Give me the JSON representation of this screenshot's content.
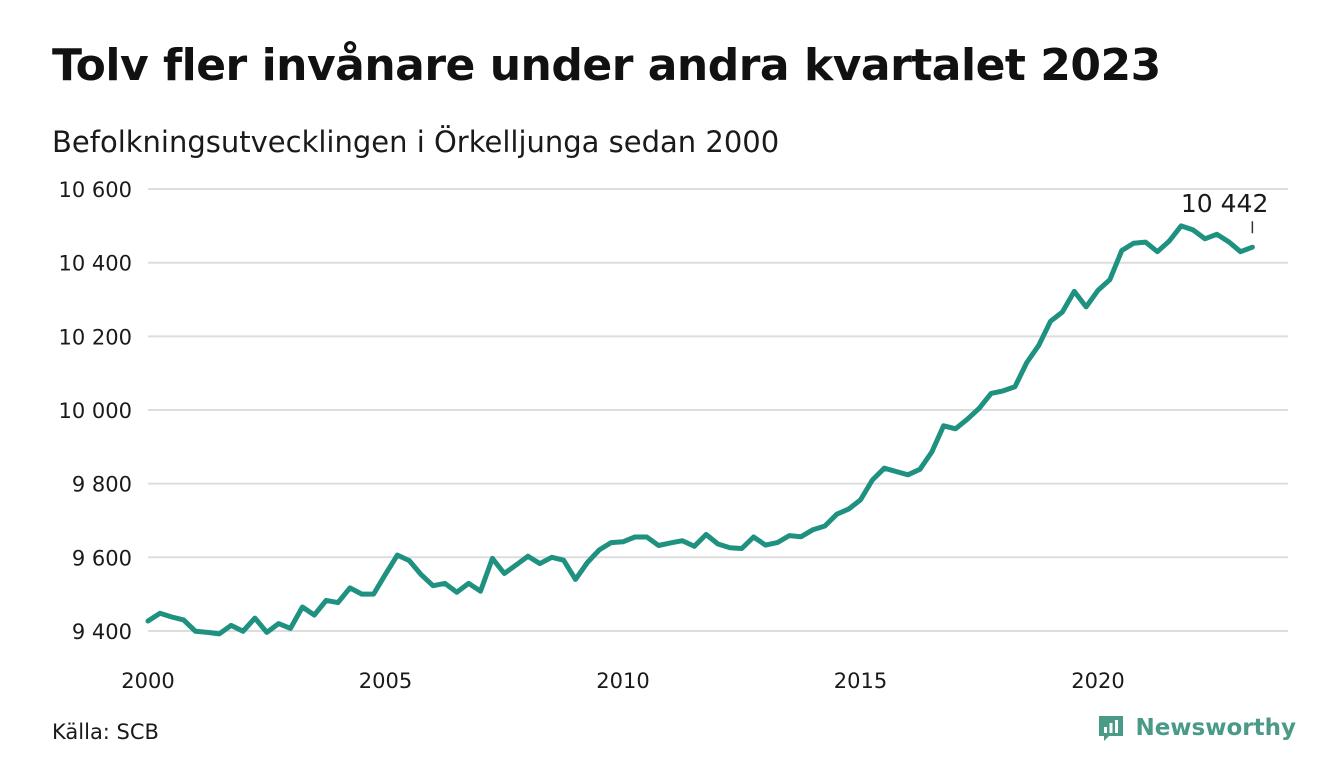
{
  "title": "Tolv fler invånare under andra kvartalet 2023",
  "subtitle": "Befolkningsutvecklingen i Örkelljunga sedan 2000",
  "source": "Källa: SCB",
  "brand": {
    "name": "Newsworthy",
    "icon": "newsworthy-logo-icon",
    "color": "#4a9a88"
  },
  "colors": {
    "line": "#1f9181",
    "grid": "#dddddd",
    "text": "#1a1a1a"
  },
  "chart_data": {
    "type": "line",
    "title": "Tolv fler invånare under andra kvartalet 2023",
    "subtitle": "Befolkningsutvecklingen i Örkelljunga sedan 2000",
    "xlabel": "",
    "ylabel": "",
    "xlim": [
      2000,
      2024
    ],
    "ylim": [
      9370,
      10630
    ],
    "yticks": [
      9400,
      9600,
      9800,
      10000,
      10200,
      10400,
      10600
    ],
    "ytick_labels": [
      "9 400",
      "9 600",
      "9 800",
      "10 000",
      "10 200",
      "10 400",
      "10 600"
    ],
    "xticks": [
      2000,
      2005,
      2010,
      2015,
      2020
    ],
    "xtick_labels": [
      "2000",
      "2005",
      "2010",
      "2015",
      "2020"
    ],
    "grid": "horizontal",
    "legend": "none",
    "annotation": {
      "text": "10 442",
      "x": 2023.25,
      "y": 10442
    },
    "series": [
      {
        "x": [
          2000.0,
          2000.25,
          2000.5,
          2000.75,
          2001.0,
          2001.25,
          2001.5,
          2001.75,
          2002.0,
          2002.25,
          2002.5,
          2002.75,
          2003.0,
          2003.25,
          2003.5,
          2003.75,
          2004.0,
          2004.25,
          2004.5,
          2004.75,
          2005.0,
          2005.25,
          2005.5,
          2005.75,
          2006.0,
          2006.25,
          2006.5,
          2006.75,
          2007.0,
          2007.25,
          2007.5,
          2007.75,
          2008.0,
          2008.25,
          2008.5,
          2008.75,
          2009.0,
          2009.25,
          2009.5,
          2009.75,
          2010.0,
          2010.25,
          2010.5,
          2010.75,
          2011.0,
          2011.25,
          2011.5,
          2011.75,
          2012.0,
          2012.25,
          2012.5,
          2012.75,
          2013.0,
          2013.25,
          2013.5,
          2013.75,
          2014.0,
          2014.25,
          2014.5,
          2014.75,
          2015.0,
          2015.25,
          2015.5,
          2015.75,
          2016.0,
          2016.25,
          2016.5,
          2016.75,
          2017.0,
          2017.25,
          2017.5,
          2017.75,
          2018.0,
          2018.25,
          2018.5,
          2018.75,
          2019.0,
          2019.25,
          2019.5,
          2019.75,
          2020.0,
          2020.25,
          2020.5,
          2020.75,
          2021.0,
          2021.25,
          2021.5,
          2021.75,
          2022.0,
          2022.25,
          2022.5,
          2022.75,
          2023.0,
          2023.25
        ],
        "values": [
          9427,
          9448,
          9438,
          9430,
          9399,
          9396,
          9392,
          9415,
          9399,
          9435,
          9396,
          9420,
          9407,
          9465,
          9443,
          9483,
          9477,
          9517,
          9500,
          9500,
          9554,
          9606,
          9591,
          9553,
          9523,
          9529,
          9505,
          9529,
          9508,
          9597,
          9556,
          9579,
          9603,
          9583,
          9600,
          9592,
          9540,
          9586,
          9620,
          9640,
          9642,
          9655,
          9655,
          9632,
          9639,
          9645,
          9630,
          9662,
          9636,
          9626,
          9624,
          9655,
          9633,
          9640,
          9659,
          9656,
          9675,
          9685,
          9717,
          9731,
          9756,
          9810,
          9842,
          9833,
          9824,
          9839,
          9886,
          9957,
          9949,
          9975,
          10005,
          10045,
          10052,
          10063,
          10129,
          10175,
          10241,
          10266,
          10322,
          10280,
          10325,
          10354,
          10433,
          10453,
          10456,
          10430,
          10459,
          10500,
          10489,
          10465,
          10477,
          10457,
          10430,
          10442
        ]
      }
    ]
  }
}
